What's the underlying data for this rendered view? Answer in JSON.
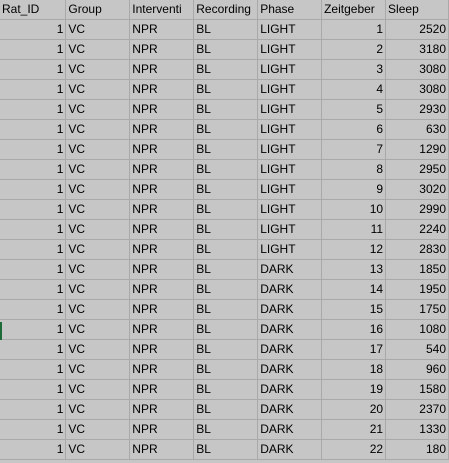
{
  "sheet": {
    "headers": [
      "Rat_ID",
      "Group",
      "Interventi",
      "Recording",
      "Phase",
      "Zeitgeber",
      "Sleep"
    ],
    "rows": [
      [
        "1",
        "VC",
        "NPR",
        "BL",
        "LIGHT",
        "1",
        "2520"
      ],
      [
        "1",
        "VC",
        "NPR",
        "BL",
        "LIGHT",
        "2",
        "3180"
      ],
      [
        "1",
        "VC",
        "NPR",
        "BL",
        "LIGHT",
        "3",
        "3080"
      ],
      [
        "1",
        "VC",
        "NPR",
        "BL",
        "LIGHT",
        "4",
        "3080"
      ],
      [
        "1",
        "VC",
        "NPR",
        "BL",
        "LIGHT",
        "5",
        "2930"
      ],
      [
        "1",
        "VC",
        "NPR",
        "BL",
        "LIGHT",
        "6",
        "630"
      ],
      [
        "1",
        "VC",
        "NPR",
        "BL",
        "LIGHT",
        "7",
        "1290"
      ],
      [
        "1",
        "VC",
        "NPR",
        "BL",
        "LIGHT",
        "8",
        "2950"
      ],
      [
        "1",
        "VC",
        "NPR",
        "BL",
        "LIGHT",
        "9",
        "3020"
      ],
      [
        "1",
        "VC",
        "NPR",
        "BL",
        "LIGHT",
        "10",
        "2990"
      ],
      [
        "1",
        "VC",
        "NPR",
        "BL",
        "LIGHT",
        "11",
        "2240"
      ],
      [
        "1",
        "VC",
        "NPR",
        "BL",
        "LIGHT",
        "12",
        "2830"
      ],
      [
        "1",
        "VC",
        "NPR",
        "BL",
        "DARK",
        "13",
        "1850"
      ],
      [
        "1",
        "VC",
        "NPR",
        "BL",
        "DARK",
        "14",
        "1950"
      ],
      [
        "1",
        "VC",
        "NPR",
        "BL",
        "DARK",
        "15",
        "1750"
      ],
      [
        "1",
        "VC",
        "NPR",
        "BL",
        "DARK",
        "16",
        "1080"
      ],
      [
        "1",
        "VC",
        "NPR",
        "BL",
        "DARK",
        "17",
        "540"
      ],
      [
        "1",
        "VC",
        "NPR",
        "BL",
        "DARK",
        "18",
        "960"
      ],
      [
        "1",
        "VC",
        "NPR",
        "BL",
        "DARK",
        "19",
        "1580"
      ],
      [
        "1",
        "VC",
        "NPR",
        "BL",
        "DARK",
        "20",
        "2370"
      ],
      [
        "1",
        "VC",
        "NPR",
        "BL",
        "DARK",
        "21",
        "1330"
      ],
      [
        "1",
        "VC",
        "NPR",
        "BL",
        "DARK",
        "22",
        "180"
      ]
    ]
  },
  "colors": {
    "cell_background": "#c6c6c6",
    "gridline": "#a9a9a9",
    "selection_marker": "#1e6b3a"
  }
}
